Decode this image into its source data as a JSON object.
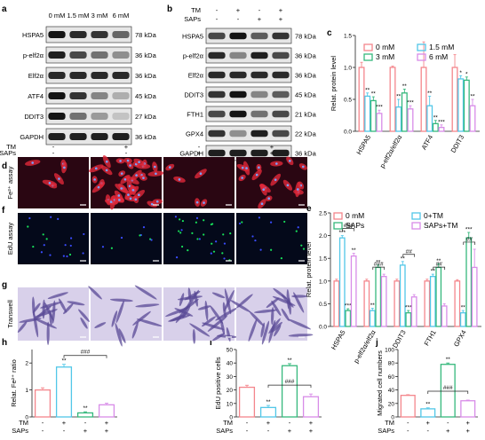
{
  "panel_labels": [
    "a",
    "b",
    "c",
    "d",
    "e",
    "f",
    "g",
    "h",
    "i",
    "j"
  ],
  "blot_a": {
    "lanes": [
      "0 mM",
      "1.5 mM",
      "3 mM",
      "6 mM"
    ],
    "rows": [
      {
        "protein": "HSPA5",
        "kda": "78 kDa",
        "intensity": [
          0.95,
          0.85,
          0.8,
          0.55
        ]
      },
      {
        "protein": "p-elf2α",
        "kda": "36 kDa",
        "intensity": [
          0.9,
          0.7,
          0.5,
          0.35
        ]
      },
      {
        "protein": "Elf2α",
        "kda": "36 kDa",
        "intensity": [
          0.85,
          0.85,
          0.85,
          0.85
        ]
      },
      {
        "protein": "ATF4",
        "kda": "45 kDa",
        "intensity": [
          0.95,
          0.8,
          0.4,
          0.2
        ]
      },
      {
        "protein": "DDIT3",
        "kda": "27 kDa",
        "intensity": [
          0.95,
          0.5,
          0.3,
          0.1
        ]
      },
      {
        "protein": "GAPDH",
        "kda": "36 kDa",
        "intensity": [
          0.9,
          0.9,
          0.9,
          0.9
        ]
      }
    ]
  },
  "blot_b": {
    "tm_label": "TM",
    "saps_label": "SAPs",
    "tm": [
      "-",
      "+",
      "-",
      "+"
    ],
    "saps": [
      "-",
      "-",
      "+",
      "+"
    ],
    "rows": [
      {
        "protein": "HSPA5",
        "kda": "78 kDa",
        "intensity": [
          0.7,
          0.95,
          0.6,
          0.8
        ]
      },
      {
        "protein": "p-elf2α",
        "kda": "36 kDa",
        "intensity": [
          0.85,
          0.4,
          0.9,
          0.7
        ]
      },
      {
        "protein": "Elf2α",
        "kda": "36 kDa",
        "intensity": [
          0.85,
          0.85,
          0.85,
          0.85
        ]
      },
      {
        "protein": "DDIT3",
        "kda": "45 kDa",
        "intensity": [
          0.8,
          0.95,
          0.4,
          0.6
        ]
      },
      {
        "protein": "FTH1",
        "kda": "21 kDa",
        "intensity": [
          0.7,
          0.95,
          0.5,
          0.7
        ]
      },
      {
        "protein": "GPX4",
        "kda": "22 kDa",
        "intensity": [
          0.8,
          0.35,
          0.9,
          0.7
        ]
      },
      {
        "protein": "GAPDH",
        "kda": "36 kDa",
        "intensity": [
          0.9,
          0.9,
          0.9,
          0.9
        ]
      }
    ]
  },
  "images_d_g": {
    "tm_label": "TM",
    "saps_label": "SAPs",
    "tm": [
      "-",
      "+",
      "-",
      "+"
    ],
    "saps": [
      "-",
      "-",
      "+",
      "+"
    ],
    "rows": [
      {
        "label": "Fe²⁺ assay",
        "bg": "#2a0612",
        "cell": "#e0283a",
        "dot": "#7aa2ff"
      },
      {
        "label": "EdU assay",
        "bg": "#04091a",
        "cell": "#17e05a",
        "dot": "#3a4cff"
      },
      {
        "label": "Transwell",
        "bg": "#d8d0ea",
        "cell": "#5a4a96",
        "dot": "#6c5aa8"
      }
    ]
  },
  "colors": {
    "c0": "#f4868c",
    "c1": "#52c7e8",
    "c2": "#35b87c",
    "c3": "#d88ce8"
  },
  "chart_data": [
    {
      "type": "bar",
      "ylabel": "Relat. protein level",
      "ylim": [
        0,
        1.5
      ],
      "yticks": [
        "0.0",
        "0.5",
        "1.0",
        "1.5"
      ],
      "categories": [
        "HSPA5",
        "p-elf2α/elf2α",
        "ATF4",
        "DDIT3"
      ],
      "legend": [
        "0 mM",
        "1.5 mM",
        "3 mM",
        "6 mM"
      ],
      "series": [
        {
          "name": "0 mM",
          "values": [
            1.0,
            1.0,
            1.0,
            1.0
          ],
          "errors": [
            0.08,
            0.02,
            0.4,
            0.2
          ]
        },
        {
          "name": "1.5 mM",
          "values": [
            0.55,
            0.38,
            0.4,
            0.82
          ],
          "errors": [
            0.05,
            0.12,
            0.15,
            0.05
          ]
        },
        {
          "name": "3 mM",
          "values": [
            0.48,
            0.6,
            0.12,
            0.8
          ],
          "errors": [
            0.06,
            0.06,
            0.05,
            0.05
          ]
        },
        {
          "name": "6 mM",
          "values": [
            0.28,
            0.35,
            0.06,
            0.4
          ],
          "errors": [
            0.05,
            0.05,
            0.04,
            0.1
          ]
        }
      ],
      "annotations": [
        [
          "",
          "",
          "",
          ""
        ],
        [
          "**",
          "**",
          "**",
          "*"
        ],
        [
          "**",
          "**",
          "**",
          "*"
        ],
        [
          "***",
          "***",
          "***",
          "**"
        ]
      ]
    },
    {
      "type": "bar",
      "ylabel": "Relat. protein level",
      "ylim": [
        0,
        2.5
      ],
      "yticks": [
        "0.0",
        "0.5",
        "1.0",
        "1.5",
        "2.0",
        "2.5"
      ],
      "categories": [
        "HSPA5",
        "p-elf2α/elf2α",
        "DDIT3",
        "FTH1",
        "GPX4"
      ],
      "legend": [
        "0 mM",
        "0+TM",
        "SAPs",
        "SAPs+TM"
      ],
      "series": [
        {
          "name": "0 mM",
          "values": [
            1.0,
            1.0,
            1.0,
            1.0,
            1.0
          ],
          "errors": [
            0.04,
            0.04,
            0.04,
            0.04,
            0.03
          ]
        },
        {
          "name": "0+TM",
          "values": [
            1.95,
            0.35,
            1.35,
            1.1,
            0.3
          ],
          "errors": [
            0.05,
            0.05,
            0.08,
            0.05,
            0.05
          ]
        },
        {
          "name": "SAPs",
          "values": [
            0.35,
            1.3,
            0.3,
            1.3,
            1.95
          ],
          "errors": [
            0.04,
            0.05,
            0.05,
            0.08,
            0.12
          ]
        },
        {
          "name": "SAPs+TM",
          "values": [
            1.55,
            1.1,
            0.65,
            0.45,
            1.3
          ],
          "errors": [
            0.06,
            0.05,
            0.05,
            0.05,
            0.4
          ]
        }
      ],
      "annotations": [
        [
          "",
          "",
          "",
          "",
          ""
        ],
        [
          "***",
          "**",
          "**",
          "**",
          "**"
        ],
        [
          "***",
          "**",
          "***",
          "**",
          "***"
        ],
        [
          "**",
          "",
          "",
          "",
          ""
        ]
      ],
      "brackets": [
        "###",
        "###",
        "##",
        "##",
        "##"
      ]
    },
    {
      "type": "bar",
      "ylabel": "Relat. Fe²⁺ ratio",
      "ylim": [
        0,
        2.5
      ],
      "yticks": [
        "0",
        "1",
        "2"
      ],
      "tm": [
        "-",
        "+",
        "-",
        "+"
      ],
      "saps": [
        "-",
        "-",
        "+",
        "+"
      ],
      "values": [
        1.0,
        1.85,
        0.15,
        0.45
      ],
      "errors": [
        0.08,
        0.1,
        0.04,
        0.06
      ],
      "annotations": [
        "",
        "**",
        "**",
        ""
      ],
      "bracket": "###"
    },
    {
      "type": "bar",
      "ylabel": "EdU positive cells",
      "ylim": [
        0,
        50
      ],
      "yticks": [
        "0",
        "10",
        "20",
        "30",
        "40",
        "50"
      ],
      "tm": [
        "-",
        "+",
        "-",
        "+"
      ],
      "saps": [
        "-",
        "-",
        "+",
        "+"
      ],
      "values": [
        22,
        7,
        38,
        15
      ],
      "errors": [
        1.5,
        1.5,
        1.5,
        2
      ],
      "annotations": [
        "",
        "**",
        "**",
        ""
      ],
      "bracket": "###"
    },
    {
      "type": "bar",
      "ylabel": "Migrated cell numbers",
      "ylim": [
        0,
        100
      ],
      "yticks": [
        "0",
        "20",
        "40",
        "60",
        "80",
        "100"
      ],
      "tm": [
        "-",
        "+",
        "-",
        "+"
      ],
      "saps": [
        "-",
        "-",
        "+",
        "+"
      ],
      "values": [
        32,
        12,
        78,
        24
      ],
      "errors": [
        1,
        1.5,
        2,
        1
      ],
      "annotations": [
        "",
        "**",
        "**",
        ""
      ],
      "bracket": "###"
    }
  ]
}
